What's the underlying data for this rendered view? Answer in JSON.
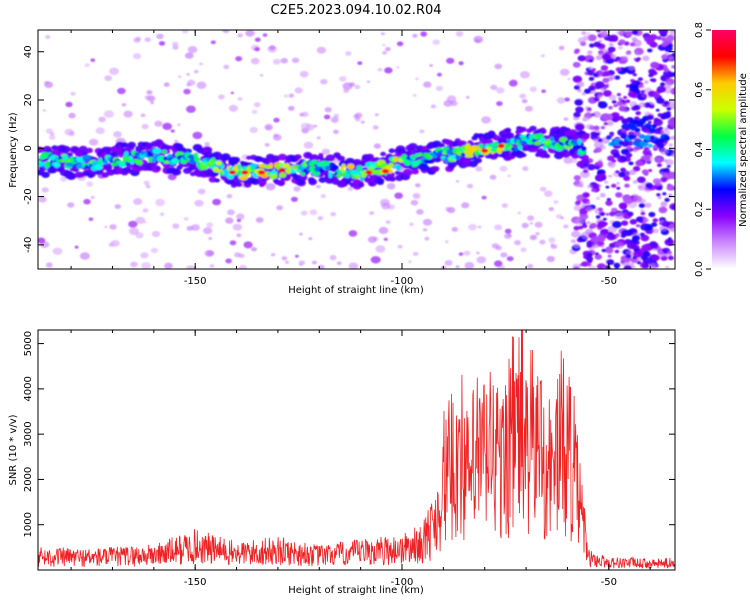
{
  "figure_title": "C2E5.2023.094.10.02.R04",
  "colors": {
    "spectrogram_low": "#ffffff",
    "spectrogram_mid": "#8800ff",
    "spectrogram_peak": "#ff0000",
    "snr_line": "#ee2222"
  },
  "chart_data": [
    {
      "type": "heatmap",
      "title": "",
      "xlabel": "Height of straight line (km)",
      "ylabel": "Frequency (Hz)",
      "xlim": [
        -188,
        -34
      ],
      "ylim": [
        -50,
        49
      ],
      "xticks": [
        -150,
        -100,
        -50
      ],
      "yticks": [
        -40,
        -20,
        0,
        20,
        40
      ],
      "grid": false,
      "colorbar": {
        "label": "Normalized spectral amplitude",
        "range": [
          0.0,
          0.8
        ],
        "ticks": [
          "0.0",
          "0.2",
          "0.4",
          "0.6",
          "0.8"
        ],
        "colors": [
          "#ffffff",
          "#cc88ff",
          "#8800ff",
          "#0000ff",
          "#00ffff",
          "#00ff44",
          "#ccff00",
          "#ffcc00",
          "#ff0000",
          "#ff0066"
        ]
      },
      "ridge": {
        "x": [
          -188,
          -175,
          -160,
          -150,
          -140,
          -130,
          -120,
          -110,
          -100,
          -90,
          -80,
          -70,
          -60,
          -56
        ],
        "y": [
          -5,
          -6,
          -3,
          -5,
          -10,
          -9,
          -8,
          -10,
          -6,
          -3,
          0,
          3,
          2,
          0
        ]
      }
    },
    {
      "type": "line",
      "title": "",
      "xlabel": "Height of straight line (km)",
      "ylabel": "SNR (10 * v/v)",
      "xlim": [
        -188,
        -34
      ],
      "ylim": [
        0,
        5300
      ],
      "xticks": [
        -150,
        -100,
        -50
      ],
      "yticks": [
        1000,
        2000,
        3000,
        4000,
        5000
      ],
      "grid": false,
      "series": [
        {
          "x": [
            -188,
            -175,
            -160,
            -150,
            -140,
            -130,
            -120,
            -110,
            -100,
            -95,
            -92,
            -90,
            -88,
            -86,
            -84,
            -82,
            -80,
            -78,
            -76,
            -74,
            -72,
            -71,
            -70,
            -68,
            -66,
            -64,
            -62,
            -60,
            -58,
            -57,
            -56,
            -55,
            -50,
            -45,
            -40,
            -34
          ],
          "y": [
            450,
            420,
            500,
            800,
            550,
            650,
            480,
            600,
            700,
            900,
            1600,
            3100,
            3400,
            4200,
            3000,
            3900,
            3800,
            4300,
            3300,
            4600,
            4700,
            5250,
            4000,
            4450,
            4000,
            3300,
            4250,
            4300,
            3200,
            2100,
            1500,
            400,
            250,
            250,
            200,
            250
          ]
        }
      ]
    }
  ]
}
